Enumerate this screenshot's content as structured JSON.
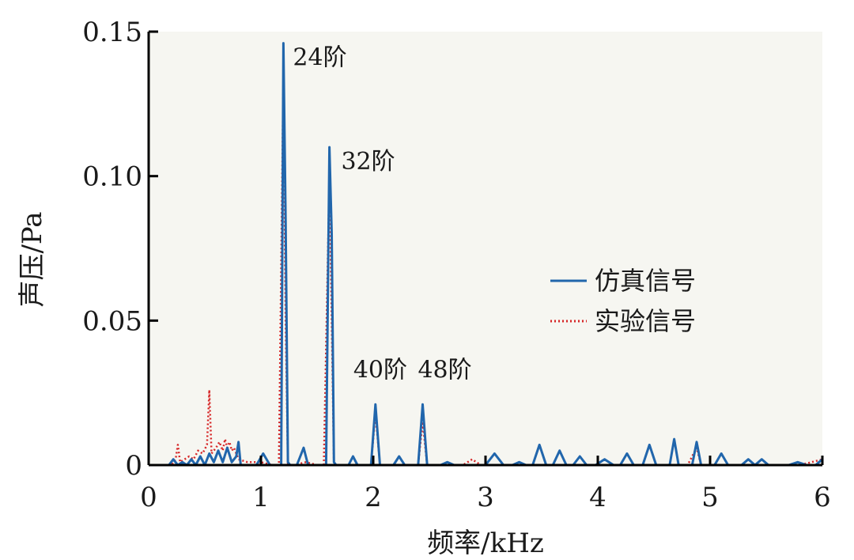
{
  "chart_data": {
    "type": "line",
    "title": "",
    "xlabel": "频率/kHz",
    "ylabel": "声压/Pa",
    "xlim": [
      0,
      6
    ],
    "ylim": [
      0,
      0.15
    ],
    "xticks": [
      {
        "v": 0,
        "label": "0"
      },
      {
        "v": 1,
        "label": "1"
      },
      {
        "v": 2,
        "label": "2"
      },
      {
        "v": 3,
        "label": "3"
      },
      {
        "v": 4,
        "label": "4"
      },
      {
        "v": 5,
        "label": "5"
      },
      {
        "v": 6,
        "label": "6"
      }
    ],
    "yticks": [
      {
        "v": 0,
        "label": "0"
      },
      {
        "v": 0.05,
        "label": "0.05"
      },
      {
        "v": 0.1,
        "label": "0.10"
      },
      {
        "v": 0.15,
        "label": "0.15"
      }
    ],
    "grid": false,
    "legend_position": "center-right",
    "series": [
      {
        "name": "仿真信号",
        "color": "#2166ac",
        "style": "solid",
        "x": [
          0.0,
          0.18,
          0.22,
          0.26,
          0.3,
          0.34,
          0.38,
          0.42,
          0.46,
          0.5,
          0.54,
          0.58,
          0.62,
          0.66,
          0.7,
          0.74,
          0.78,
          0.8,
          0.82,
          0.9,
          0.96,
          1.02,
          1.08,
          1.14,
          1.18,
          1.2,
          1.22,
          1.24,
          1.26,
          1.32,
          1.38,
          1.42,
          1.46,
          1.52,
          1.58,
          1.61,
          1.63,
          1.65,
          1.67,
          1.72,
          1.78,
          1.82,
          1.86,
          1.92,
          1.98,
          2.02,
          2.06,
          2.12,
          2.18,
          2.23,
          2.28,
          2.34,
          2.4,
          2.44,
          2.48,
          2.54,
          2.6,
          2.66,
          2.72,
          2.8,
          2.92,
          3.0,
          3.08,
          3.16,
          3.24,
          3.3,
          3.36,
          3.42,
          3.48,
          3.54,
          3.6,
          3.66,
          3.72,
          3.78,
          3.84,
          3.9,
          3.98,
          4.06,
          4.14,
          4.2,
          4.26,
          4.32,
          4.4,
          4.46,
          4.52,
          4.58,
          4.64,
          4.68,
          4.72,
          4.78,
          4.84,
          4.88,
          4.92,
          4.98,
          5.04,
          5.1,
          5.16,
          5.22,
          5.28,
          5.34,
          5.4,
          5.46,
          5.52,
          5.6,
          5.7,
          5.78,
          5.86,
          5.94,
          6.0
        ],
        "y": [
          0.0,
          0.0,
          0.002,
          0.0,
          0.001,
          0.0,
          0.002,
          0.0,
          0.003,
          0.0,
          0.004,
          0.001,
          0.005,
          0.001,
          0.006,
          0.001,
          0.003,
          0.008,
          0.0,
          0.0,
          0.0,
          0.004,
          0.0,
          0.0,
          0.0,
          0.146,
          0.085,
          0.001,
          0.0,
          0.0,
          0.006,
          0.0,
          0.0,
          0.0,
          0.0,
          0.11,
          0.08,
          0.001,
          0.0,
          0.0,
          0.0,
          0.003,
          0.0,
          0.0,
          0.0,
          0.021,
          0.0,
          0.0,
          0.0,
          0.003,
          0.0,
          0.0,
          0.0,
          0.021,
          0.0,
          0.0,
          0.0,
          0.001,
          0.0,
          0.0,
          0.0,
          0.0,
          0.004,
          0.0,
          0.0,
          0.001,
          0.0,
          0.0,
          0.007,
          0.0,
          0.0,
          0.005,
          0.0,
          0.0,
          0.003,
          0.0,
          0.0,
          0.002,
          0.0,
          0.0,
          0.004,
          0.0,
          0.0,
          0.007,
          0.0,
          0.0,
          0.0,
          0.009,
          0.0,
          0.0,
          0.0,
          0.008,
          0.0,
          0.0,
          0.0,
          0.004,
          0.0,
          0.0,
          0.0,
          0.002,
          0.0,
          0.002,
          0.0,
          0.0,
          0.0,
          0.001,
          0.0,
          0.0,
          0.002
        ]
      },
      {
        "name": "实验信号",
        "color": "#d62728",
        "style": "dotted",
        "x": [
          0.0,
          0.2,
          0.24,
          0.26,
          0.28,
          0.32,
          0.36,
          0.4,
          0.44,
          0.48,
          0.52,
          0.54,
          0.56,
          0.6,
          0.63,
          0.66,
          0.68,
          0.7,
          0.72,
          0.74,
          0.76,
          0.8,
          0.88,
          1.0,
          1.1,
          1.16,
          1.2,
          1.22,
          1.24,
          1.3,
          1.4,
          1.5,
          1.56,
          1.61,
          1.63,
          1.65,
          1.7,
          1.8,
          1.9,
          1.98,
          2.02,
          2.06,
          2.12,
          2.24,
          2.34,
          2.4,
          2.44,
          2.48,
          2.56,
          2.7,
          2.8,
          2.88,
          2.96,
          3.1,
          3.3,
          3.6,
          3.9,
          4.2,
          4.5,
          4.8,
          4.88,
          4.92,
          5.0,
          5.2,
          5.4,
          5.6,
          5.8,
          6.0
        ],
        "y": [
          0.0,
          0.0,
          0.002,
          0.007,
          0.001,
          0.002,
          0.003,
          0.002,
          0.005,
          0.004,
          0.007,
          0.026,
          0.004,
          0.006,
          0.008,
          0.005,
          0.009,
          0.006,
          0.008,
          0.005,
          0.006,
          0.002,
          0.001,
          0.001,
          0.0,
          0.0,
          0.135,
          0.05,
          0.0,
          0.0,
          0.001,
          0.0,
          0.0,
          0.1,
          0.05,
          0.0,
          0.0,
          0.0,
          0.0,
          0.0,
          0.018,
          0.0,
          0.0,
          0.0,
          0.0,
          0.0,
          0.015,
          0.0,
          0.0,
          0.0,
          0.0,
          0.002,
          0.0,
          0.0,
          0.0,
          0.0,
          0.0,
          0.0,
          0.0,
          0.0,
          0.006,
          0.0,
          0.0,
          0.0,
          0.0,
          0.0,
          0.0,
          0.002
        ]
      }
    ],
    "annotations": [
      {
        "text": "24阶",
        "x": 1.2,
        "y": 0.146
      },
      {
        "text": "32阶",
        "x": 1.63,
        "y": 0.11
      },
      {
        "text": "40阶",
        "x": 2.02,
        "y": 0.021
      },
      {
        "text": "48阶",
        "x": 2.44,
        "y": 0.021
      }
    ]
  }
}
